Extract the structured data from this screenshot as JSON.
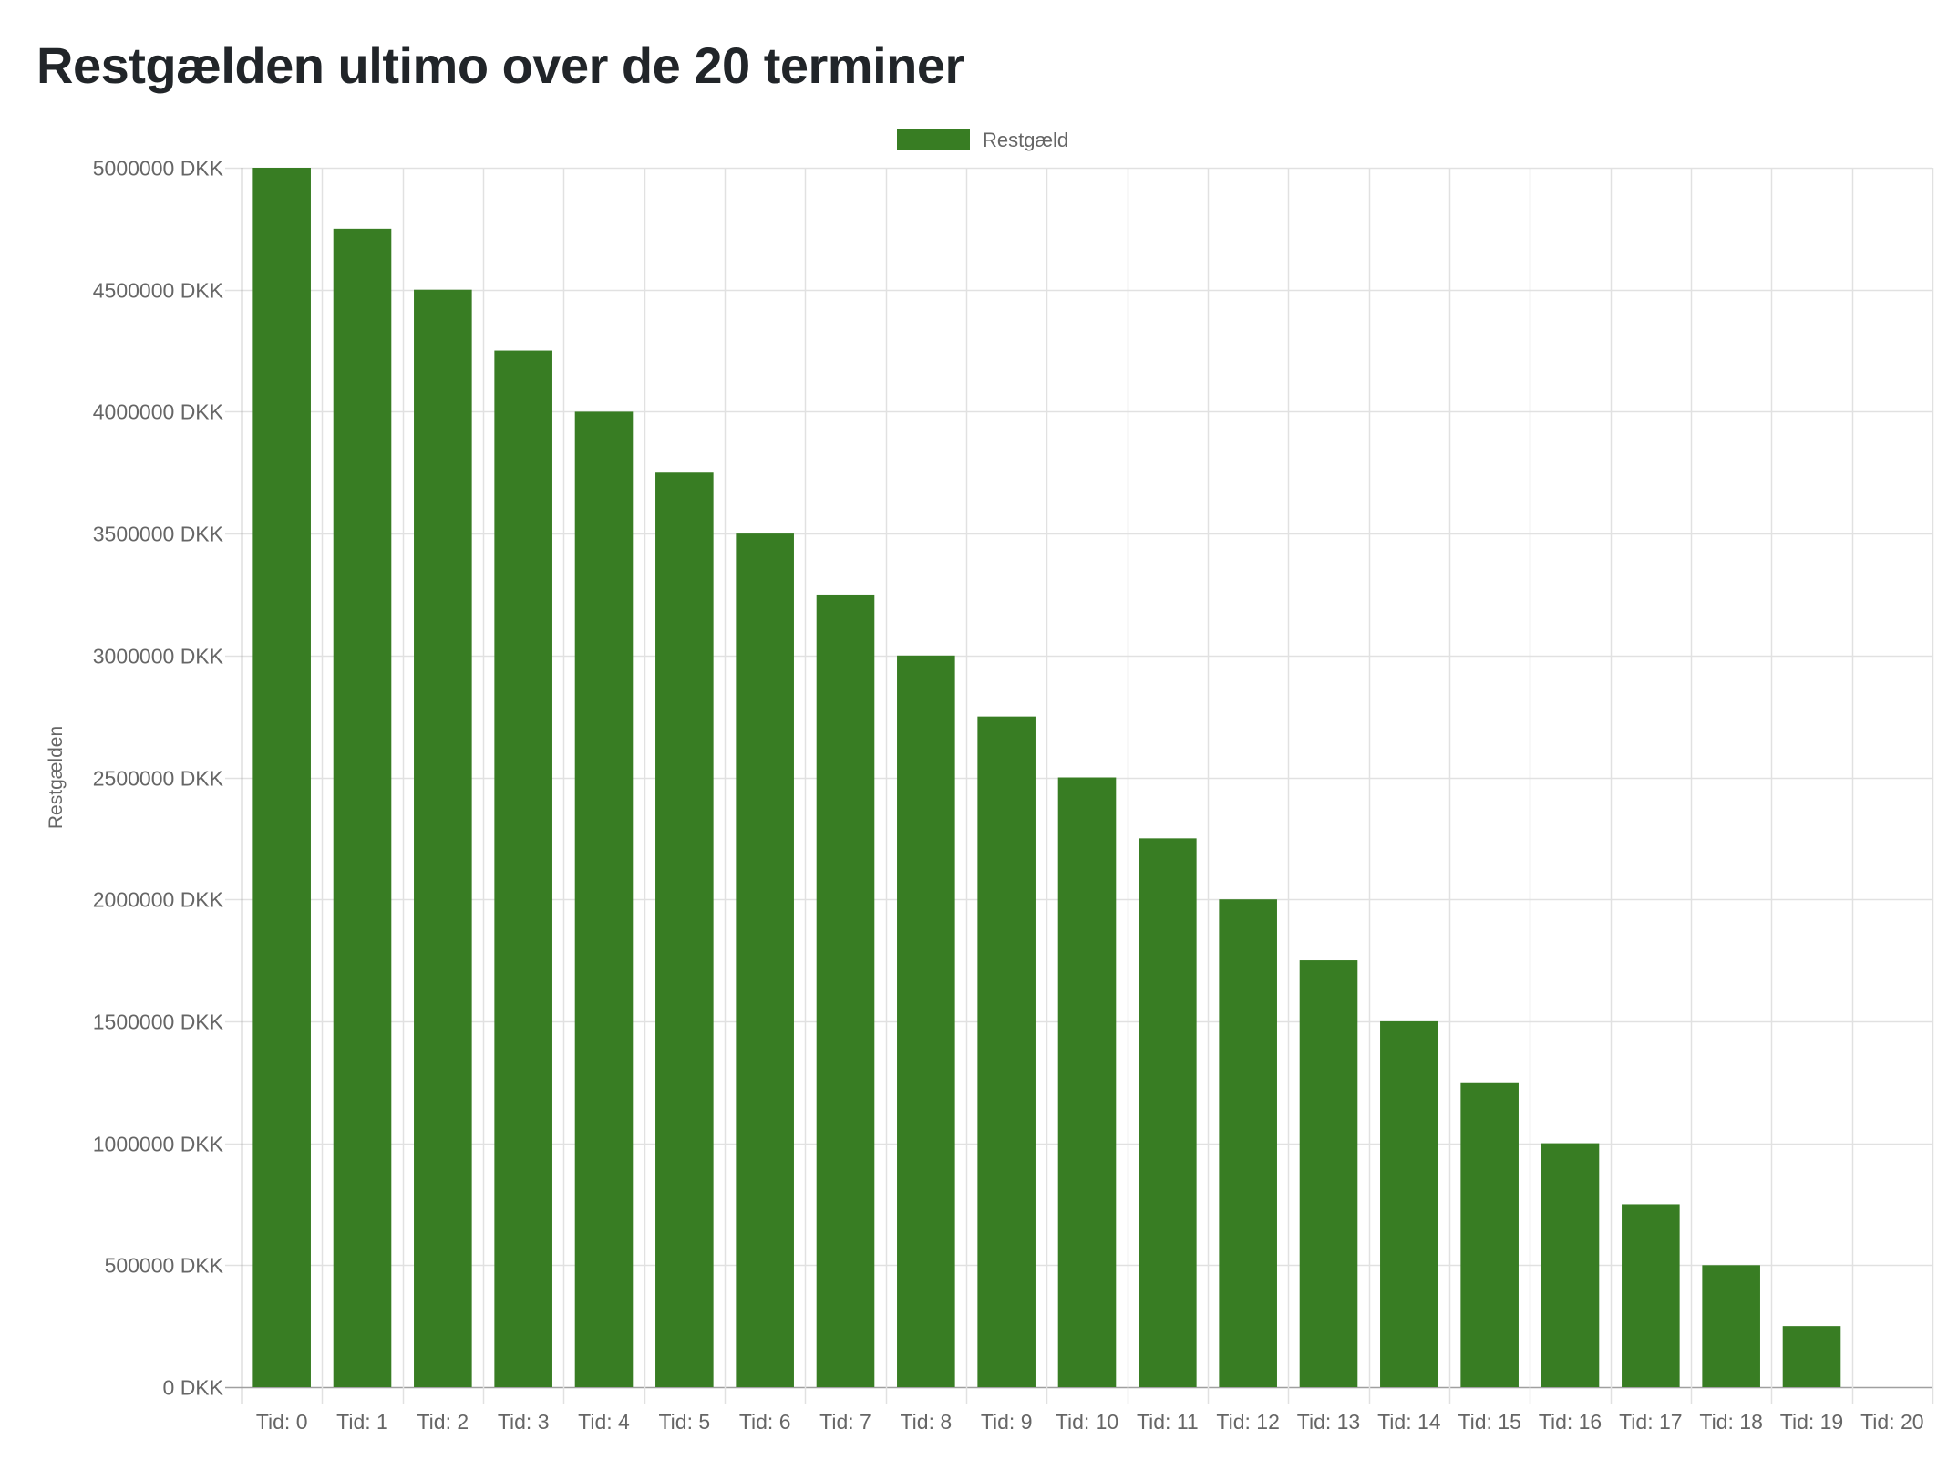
{
  "page": {
    "title": "Restgælden ultimo over de 20 terminer"
  },
  "chart_data": {
    "type": "bar",
    "title": "",
    "xlabel": "",
    "ylabel": "Restgælden",
    "categories": [
      "Tid: 0",
      "Tid: 1",
      "Tid: 2",
      "Tid: 3",
      "Tid: 4",
      "Tid: 5",
      "Tid: 6",
      "Tid: 7",
      "Tid: 8",
      "Tid: 9",
      "Tid: 10",
      "Tid: 11",
      "Tid: 12",
      "Tid: 13",
      "Tid: 14",
      "Tid: 15",
      "Tid: 16",
      "Tid: 17",
      "Tid: 18",
      "Tid: 19",
      "Tid: 20"
    ],
    "series": [
      {
        "name": "Restgæld",
        "color": "#387d23",
        "values": [
          5000000,
          4750000,
          4500000,
          4250000,
          4000000,
          3750000,
          3500000,
          3250000,
          3000000,
          2750000,
          2500000,
          2250000,
          2000000,
          1750000,
          1500000,
          1250000,
          1000000,
          750000,
          500000,
          250000,
          0
        ]
      }
    ],
    "ylim": [
      0,
      5000000
    ],
    "yticks": [
      0,
      500000,
      1000000,
      1500000,
      2000000,
      2500000,
      3000000,
      3500000,
      4000000,
      4500000,
      5000000
    ],
    "ytick_suffix": " DKK",
    "grid": true,
    "legend_position": "top-center"
  }
}
